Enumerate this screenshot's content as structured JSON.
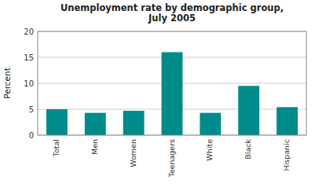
{
  "chart_data": {
    "type": "bar",
    "title": "Unemployment rate by demographic group,\nJuly 2005",
    "categories": [
      "Total",
      "Men",
      "Women",
      "Teenagers",
      "White",
      "Black",
      "Hispanic"
    ],
    "values": [
      5.0,
      4.3,
      4.7,
      16.0,
      4.3,
      9.5,
      5.4
    ],
    "color": "#008B8B",
    "ylabel": "Percent",
    "ylim": [
      0,
      20
    ],
    "yticks": [
      0,
      5,
      10,
      15,
      20
    ],
    "grid": true
  }
}
